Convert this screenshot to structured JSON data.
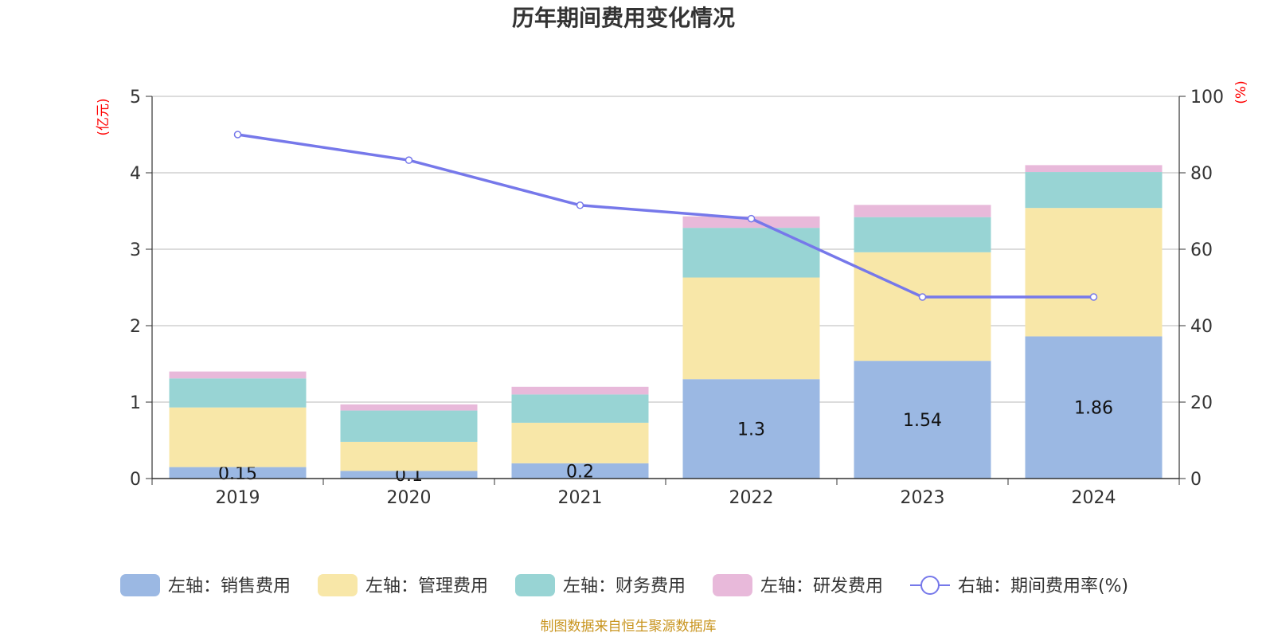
{
  "chart_data": {
    "type": "bar",
    "stacked": true,
    "title": "历年期间费用变化情况",
    "categories": [
      "2019",
      "2020",
      "2021",
      "2022",
      "2023",
      "2024"
    ],
    "left_axis": {
      "unit": "(亿元)",
      "ylim": [
        0,
        5
      ],
      "ticks": [
        "0",
        "1",
        "2",
        "3",
        "4",
        "5"
      ]
    },
    "right_axis": {
      "unit": "(%)",
      "ylim": [
        0,
        100
      ],
      "ticks": [
        "0",
        "20",
        "40",
        "60",
        "80",
        "100"
      ]
    },
    "series": [
      {
        "name": "左轴：销售费用",
        "type": "bar",
        "axis": "left",
        "color": "#9bb8e3",
        "values": [
          0.15,
          0.1,
          0.2,
          1.3,
          1.54,
          1.86
        ],
        "labels": [
          "0.15",
          "0.1",
          "0.2",
          "1.3",
          "1.54",
          "1.86"
        ]
      },
      {
        "name": "左轴：管理费用",
        "type": "bar",
        "axis": "left",
        "color": "#f8e7a8",
        "values": [
          0.78,
          0.38,
          0.53,
          1.33,
          1.42,
          1.68
        ]
      },
      {
        "name": "左轴：财务费用",
        "type": "bar",
        "axis": "left",
        "color": "#98d4d4",
        "values": [
          0.38,
          0.41,
          0.37,
          0.65,
          0.46,
          0.47
        ]
      },
      {
        "name": "左轴：研发费用",
        "type": "bar",
        "axis": "left",
        "color": "#e8b9da",
        "values": [
          0.09,
          0.08,
          0.1,
          0.15,
          0.16,
          0.09
        ]
      },
      {
        "name": "右轴：期间费用率(%)",
        "type": "line",
        "axis": "right",
        "color": "#7678ea",
        "values": [
          90,
          83.3,
          71.5,
          68,
          47.5,
          47.5
        ]
      }
    ],
    "grid": true,
    "legend": "bottom",
    "source": "制图数据来自恒生聚源数据库"
  }
}
